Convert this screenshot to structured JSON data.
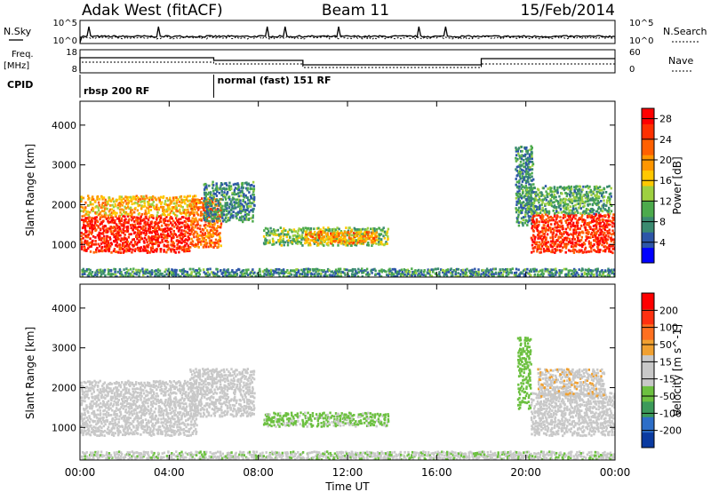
{
  "header": {
    "station": "Adak West (fitACF)",
    "beam": "Beam 11",
    "date": "15/Feb/2014"
  },
  "top_panels": {
    "nsky_label": "N.Sky",
    "nsky_ticks": [
      "10^5",
      "10^0"
    ],
    "nsearch_label": "N.Search",
    "nsearch_ticks": [
      "10^5",
      "10^0"
    ],
    "freq_label_line1": "Freq.",
    "freq_label_line2": "[MHz]",
    "freq_ticks": [
      "18",
      "8"
    ],
    "nave_label": "Nave",
    "nave_ticks": [
      "60",
      "0"
    ],
    "cpid_label": "CPID",
    "cpid_segments": [
      {
        "name": "rbsp 200 RF",
        "start_hour": 0,
        "end_hour": 6
      },
      {
        "name": "normal (fast) 151 RF",
        "start_hour": 6,
        "end_hour": 24
      }
    ]
  },
  "x_axis": {
    "label": "Time UT",
    "ticks": [
      "00:00",
      "04:00",
      "08:00",
      "12:00",
      "16:00",
      "20:00",
      "00:00"
    ]
  },
  "colors": {
    "power": [
      "#0000ff",
      "#2d56a8",
      "#3a8a70",
      "#4caa4c",
      "#9ed040",
      "#ffc800",
      "#ff9600",
      "#ff6000",
      "#ff3000",
      "#ff0000"
    ],
    "velocity": [
      "#0a3aa0",
      "#2d6ec8",
      "#3c9a5a",
      "#6cc040",
      "#c8c8c8",
      "#c8c8c8",
      "#f0a030",
      "#ff7020",
      "#ff3010",
      "#ff0000"
    ],
    "ground_scatter": "#c0c0c0"
  },
  "chart_data": [
    {
      "type": "heatmap",
      "title": "Power",
      "ylabel": "Slant Range [km]",
      "xlabel": "",
      "xlim": [
        0,
        24
      ],
      "ylim": [
        180,
        4600
      ],
      "yticks": [
        "1000",
        "2000",
        "3000",
        "4000"
      ],
      "colorbar": {
        "label": "Power [dB]",
        "ticks": [
          "4",
          "8",
          "12",
          "16",
          "20",
          "24",
          "28"
        ],
        "range": [
          0,
          30
        ]
      },
      "regions": [
        {
          "t0": 0.0,
          "t1": 4.9,
          "r0": 820,
          "r1": 1750,
          "level": 27
        },
        {
          "t0": 0.0,
          "t1": 5.2,
          "r0": 1750,
          "r1": 2250,
          "level": 18
        },
        {
          "t0": 4.9,
          "t1": 6.3,
          "r0": 950,
          "r1": 2200,
          "level": 22
        },
        {
          "t0": 5.5,
          "t1": 7.8,
          "r0": 1600,
          "r1": 2600,
          "level": 8
        },
        {
          "t0": 8.2,
          "t1": 13.8,
          "r0": 1000,
          "r1": 1450,
          "level": 12
        },
        {
          "t0": 10.0,
          "t1": 13.3,
          "r0": 1050,
          "r1": 1350,
          "level": 20
        },
        {
          "t0": 0.0,
          "t1": 24.0,
          "r0": 220,
          "r1": 420,
          "level": 8
        },
        {
          "t0": 19.5,
          "t1": 20.3,
          "r0": 1500,
          "r1": 3500,
          "level": 8
        },
        {
          "t0": 20.2,
          "t1": 24.0,
          "r0": 820,
          "r1": 1800,
          "level": 26
        },
        {
          "t0": 20.0,
          "t1": 23.8,
          "r0": 1800,
          "r1": 2500,
          "level": 10
        }
      ]
    },
    {
      "type": "heatmap",
      "title": "Velocity",
      "ylabel": "Slant Range [km]",
      "xlabel": "Time UT",
      "xlim": [
        0,
        24
      ],
      "ylim": [
        180,
        4600
      ],
      "yticks": [
        "1000",
        "2000",
        "3000",
        "4000"
      ],
      "colorbar": {
        "label": "Velocity [m s^-1]",
        "ticks": [
          "200",
          "100",
          "50",
          "15",
          "-15",
          "-50",
          "-100",
          "-200"
        ],
        "range": [
          -250,
          250
        ]
      },
      "regions": [
        {
          "t0": 0.0,
          "t1": 5.2,
          "r0": 820,
          "r1": 2200,
          "level": 0
        },
        {
          "t0": 4.9,
          "t1": 7.8,
          "r0": 1300,
          "r1": 2500,
          "level": 0
        },
        {
          "t0": 8.2,
          "t1": 13.8,
          "r0": 1050,
          "r1": 1400,
          "level": -60
        },
        {
          "t0": 0.0,
          "t1": 24.0,
          "r0": 220,
          "r1": 420,
          "level": -40
        },
        {
          "t0": 19.6,
          "t1": 20.2,
          "r0": 1500,
          "r1": 3300,
          "level": -80
        },
        {
          "t0": 20.2,
          "t1": 24.0,
          "r0": 820,
          "r1": 1900,
          "level": 0
        },
        {
          "t0": 20.5,
          "t1": 23.5,
          "r0": 1800,
          "r1": 2500,
          "level": 40
        }
      ]
    }
  ]
}
